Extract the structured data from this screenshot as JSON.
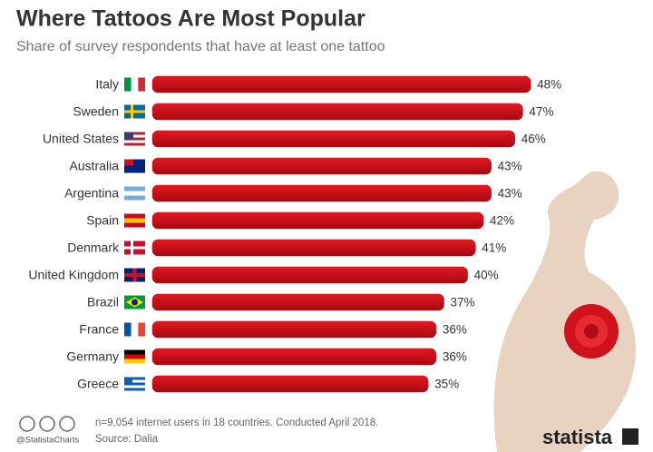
{
  "chart_data": {
    "type": "bar",
    "title": "Where Tattoos Are Most Popular",
    "subtitle": "Share of survey respondents that have at least one tattoo",
    "categories": [
      "Italy",
      "Sweden",
      "United States",
      "Australia",
      "Argentina",
      "Spain",
      "Denmark",
      "United Kingdom",
      "Brazil",
      "France",
      "Germany",
      "Greece"
    ],
    "values": [
      48,
      47,
      46,
      43,
      43,
      42,
      41,
      40,
      37,
      36,
      36,
      35
    ],
    "value_labels": [
      "48%",
      "47%",
      "46%",
      "43%",
      "43%",
      "42%",
      "41%",
      "40%",
      "37%",
      "36%",
      "36%",
      "35%"
    ],
    "color": "#c40d17",
    "note": "n=9,054 internet users in 18 countries. Conducted April 2018.",
    "handle": "@StatistaCharts",
    "source": "Source: Dalia",
    "brand": "statista"
  }
}
